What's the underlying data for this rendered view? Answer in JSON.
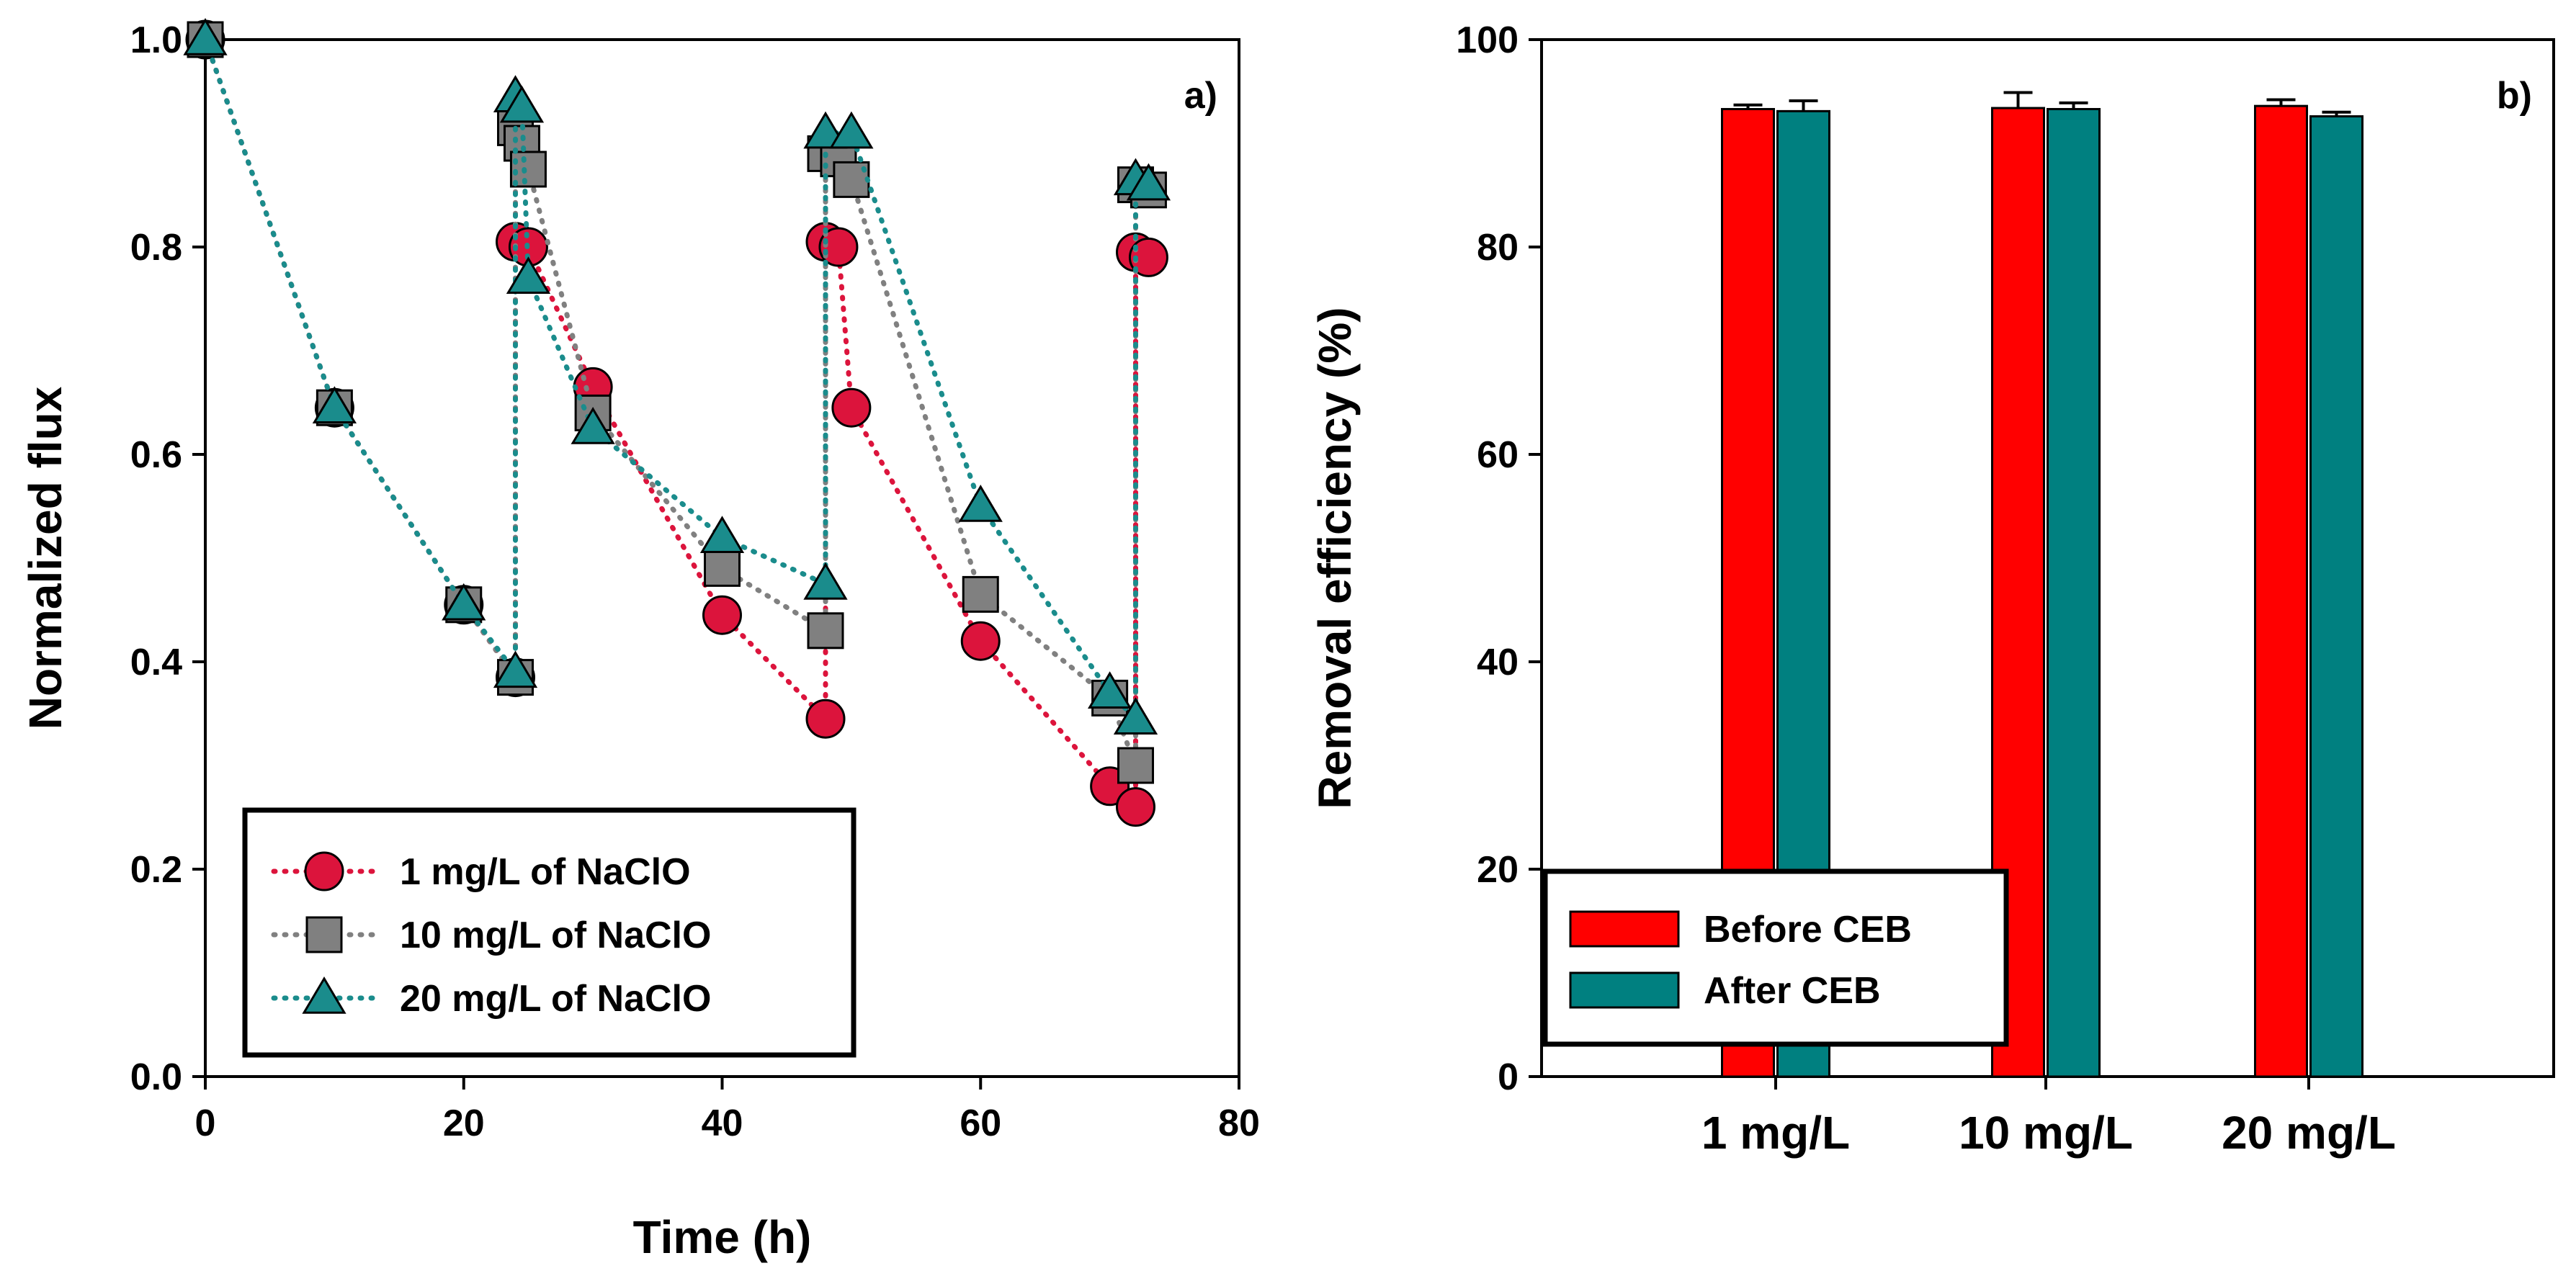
{
  "chart_data": [
    {
      "type": "line",
      "panel_label": "a)",
      "xlabel": "Time (h)",
      "ylabel": "Normalized flux",
      "xlim": [
        0,
        80
      ],
      "ylim": [
        0.0,
        1.0
      ],
      "xticks": [
        0,
        20,
        40,
        60,
        80
      ],
      "yticks": [
        0.0,
        0.2,
        0.4,
        0.6,
        0.8,
        1.0
      ],
      "x_tick_labels": [
        "0",
        "20",
        "40",
        "60",
        "80"
      ],
      "y_tick_labels": [
        "0.0",
        "0.2",
        "0.4",
        "0.6",
        "0.8",
        "1.0"
      ],
      "legend_position": "bottom-left",
      "grid": false,
      "line_style": "dotted",
      "series": [
        {
          "name": "1 mg/L of NaClO",
          "marker": "circle",
          "color": "#DC143C",
          "x": [
            0,
            10,
            20,
            24,
            24,
            25,
            30,
            40,
            48,
            48,
            49,
            50,
            60,
            70,
            72,
            72,
            73
          ],
          "y": [
            1.0,
            0.645,
            0.455,
            0.385,
            0.805,
            0.8,
            0.665,
            0.445,
            0.345,
            0.805,
            0.8,
            0.645,
            0.42,
            0.28,
            0.26,
            0.795,
            0.79
          ]
        },
        {
          "name": "10 mg/L of NaClO",
          "marker": "square",
          "color": "#808080",
          "x": [
            0,
            10,
            20,
            24,
            24,
            24.5,
            25,
            30,
            40,
            48,
            48,
            49,
            50,
            60,
            70,
            72,
            72,
            73
          ],
          "y": [
            1.0,
            0.645,
            0.455,
            0.385,
            0.915,
            0.9,
            0.875,
            0.64,
            0.49,
            0.43,
            0.89,
            0.885,
            0.865,
            0.465,
            0.365,
            0.3,
            0.86,
            0.855
          ]
        },
        {
          "name": "20 mg/L of NaClO",
          "marker": "triangle",
          "color": "#1A8C8C",
          "x": [
            0,
            10,
            20,
            24,
            24,
            24.5,
            25,
            30,
            40,
            48,
            48,
            50,
            60,
            70,
            72,
            72,
            73
          ],
          "y": [
            1.0,
            0.645,
            0.455,
            0.39,
            0.945,
            0.935,
            0.77,
            0.625,
            0.52,
            0.475,
            0.91,
            0.91,
            0.55,
            0.37,
            0.345,
            0.865,
            0.86
          ]
        }
      ]
    },
    {
      "type": "bar",
      "panel_label": "b)",
      "xlabel": "",
      "ylabel": "Removal efficiency (%)",
      "ylim": [
        0,
        100
      ],
      "yticks": [
        0,
        20,
        40,
        60,
        80,
        100
      ],
      "y_tick_labels": [
        "0",
        "20",
        "40",
        "60",
        "80",
        "100"
      ],
      "categories": [
        "1 mg/L",
        "10 mg/L",
        "20 mg/L"
      ],
      "legend_position": "bottom-left",
      "grid": false,
      "series": [
        {
          "name": "Before CEB",
          "color": "#FF0000",
          "values": [
            93.3,
            93.4,
            93.6
          ],
          "errors": [
            0.4,
            1.5,
            0.6
          ]
        },
        {
          "name": "After CEB",
          "color": "#008080",
          "values": [
            93.1,
            93.3,
            92.6
          ],
          "errors": [
            1.0,
            0.6,
            0.4
          ]
        }
      ]
    }
  ]
}
